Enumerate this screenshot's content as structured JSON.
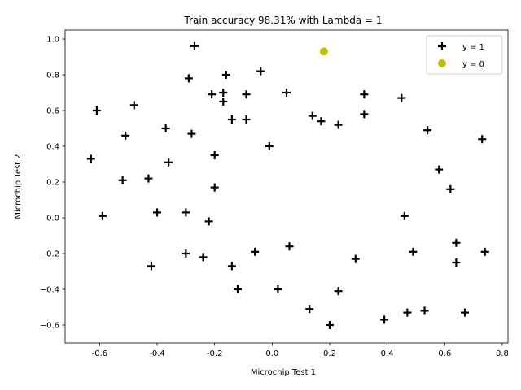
{
  "chart_data": {
    "type": "scatter",
    "title": "Train accuracy 98.31% with Lambda = 1",
    "xlabel": "Microchip Test 1",
    "ylabel": "Microchip Test 2",
    "xlim": [
      -0.72,
      0.82
    ],
    "ylim": [
      -0.7,
      1.05
    ],
    "xticks": [
      "-0.6",
      "-0.4",
      "-0.2",
      "0.0",
      "0.2",
      "0.4",
      "0.6",
      "0.8"
    ],
    "xtick_values": [
      -0.6,
      -0.4,
      -0.2,
      0.0,
      0.2,
      0.4,
      0.6,
      0.8
    ],
    "yticks": [
      "−0.6",
      "−0.4",
      "−0.2",
      "0.0",
      "0.2",
      "0.4",
      "0.6",
      "0.8",
      "1.0"
    ],
    "ytick_values": [
      -0.6,
      -0.4,
      -0.2,
      0.0,
      0.2,
      0.4,
      0.6,
      0.8,
      1.0
    ],
    "legend_position": "top-right",
    "grid": false,
    "series": [
      {
        "name": "y = 1",
        "marker": "plus",
        "color": "#000000",
        "points": [
          [
            -0.61,
            0.6
          ],
          [
            -0.27,
            0.96
          ],
          [
            -0.29,
            0.78
          ],
          [
            -0.16,
            0.8
          ],
          [
            -0.04,
            0.82
          ],
          [
            -0.48,
            0.63
          ],
          [
            -0.21,
            0.69
          ],
          [
            -0.17,
            0.7
          ],
          [
            -0.09,
            0.69
          ],
          [
            -0.17,
            0.65
          ],
          [
            0.05,
            0.7
          ],
          [
            0.32,
            0.69
          ],
          [
            0.45,
            0.67
          ],
          [
            -0.14,
            0.55
          ],
          [
            -0.09,
            0.55
          ],
          [
            0.14,
            0.57
          ],
          [
            0.17,
            0.54
          ],
          [
            0.23,
            0.52
          ],
          [
            0.32,
            0.58
          ],
          [
            -0.37,
            0.5
          ],
          [
            -0.51,
            0.46
          ],
          [
            -0.28,
            0.47
          ],
          [
            0.54,
            0.49
          ],
          [
            -0.01,
            0.4
          ],
          [
            0.73,
            0.44
          ],
          [
            -0.2,
            0.35
          ],
          [
            -0.63,
            0.33
          ],
          [
            -0.36,
            0.31
          ],
          [
            0.58,
            0.27
          ],
          [
            -0.52,
            0.21
          ],
          [
            -0.43,
            0.22
          ],
          [
            -0.2,
            0.17
          ],
          [
            0.62,
            0.16
          ],
          [
            -0.59,
            0.01
          ],
          [
            -0.4,
            0.03
          ],
          [
            -0.3,
            0.03
          ],
          [
            -0.22,
            -0.02
          ],
          [
            0.46,
            0.01
          ],
          [
            0.06,
            -0.16
          ],
          [
            0.64,
            -0.14
          ],
          [
            -0.3,
            -0.2
          ],
          [
            -0.24,
            -0.22
          ],
          [
            -0.06,
            -0.19
          ],
          [
            0.49,
            -0.19
          ],
          [
            0.74,
            -0.19
          ],
          [
            0.29,
            -0.23
          ],
          [
            0.64,
            -0.25
          ],
          [
            -0.42,
            -0.27
          ],
          [
            -0.14,
            -0.27
          ],
          [
            -0.12,
            -0.4
          ],
          [
            0.02,
            -0.4
          ],
          [
            0.23,
            -0.41
          ],
          [
            0.13,
            -0.51
          ],
          [
            0.53,
            -0.52
          ],
          [
            0.47,
            -0.53
          ],
          [
            0.67,
            -0.53
          ],
          [
            0.39,
            -0.57
          ],
          [
            0.2,
            -0.6
          ]
        ]
      },
      {
        "name": "y = 0",
        "marker": "circle",
        "color": "#bfbf00",
        "points": [
          [
            0.18,
            0.93
          ]
        ]
      }
    ]
  }
}
